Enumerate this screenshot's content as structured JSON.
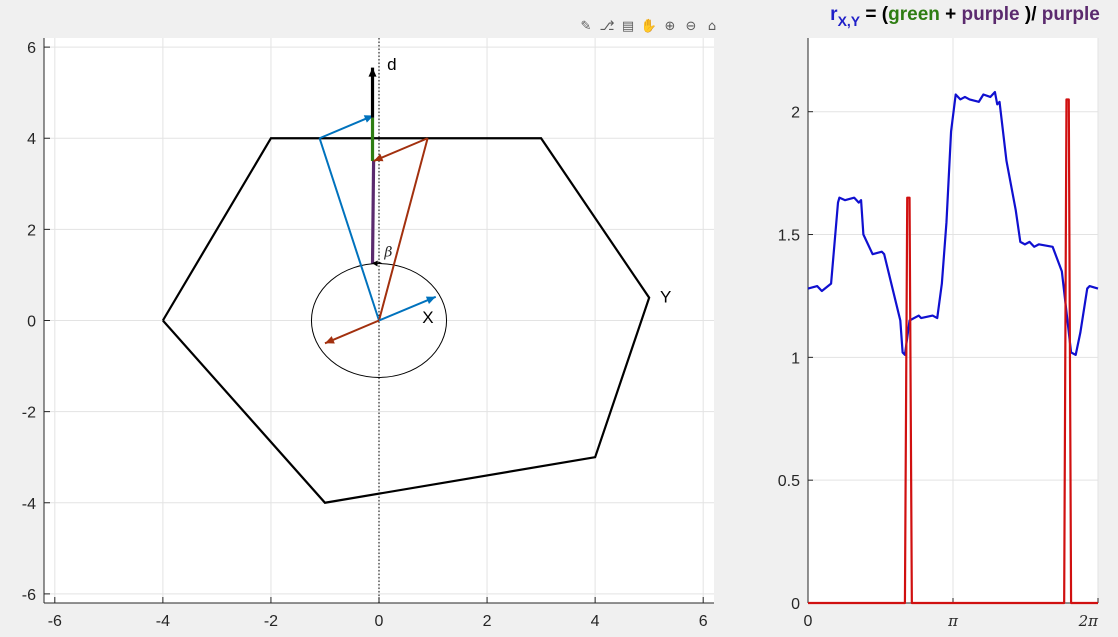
{
  "toolbar": [
    {
      "name": "brush-icon",
      "glyph": "✎"
    },
    {
      "name": "data-tips-icon",
      "glyph": "⎇"
    },
    {
      "name": "legend-icon",
      "glyph": "▤"
    },
    {
      "name": "pan-icon",
      "glyph": "✋"
    },
    {
      "name": "zoom-in-icon",
      "glyph": "⊕"
    },
    {
      "name": "zoom-out-icon",
      "glyph": "⊖"
    },
    {
      "name": "home-icon",
      "glyph": "⌂"
    }
  ],
  "colors": {
    "polygon": "#000000",
    "circle": "#000000",
    "d_vector": "#000000",
    "blue_arrow": "#0072BD",
    "red_arrow": "#A2300E",
    "green": "#2E7D12",
    "purple": "#5B2A6E",
    "title_blue": "#1f1fc8",
    "curve_blue": "#1010d0",
    "curve_red": "#d01010",
    "grid": "#e3e3e3"
  },
  "chart_data": [
    {
      "type": "line",
      "annotations": {
        "d": "d",
        "X": "X",
        "Y": "Y",
        "beta": "β"
      },
      "xlim": [
        -6.2,
        6.2
      ],
      "ylim": [
        -6.2,
        6.2
      ],
      "xticks": [
        -6,
        -4,
        -2,
        0,
        2,
        4,
        6
      ],
      "yticks": [
        -6,
        -4,
        -2,
        0,
        2,
        4,
        6
      ],
      "xtick_labels": [
        "-6",
        "-4",
        "-2",
        "0",
        "2",
        "4",
        "6"
      ],
      "ytick_labels": [
        "-6",
        "-4",
        "-2",
        "0",
        "2",
        "4",
        "6"
      ],
      "grid": true,
      "polygon_Y": {
        "x": [
          -4,
          -2,
          3,
          5,
          4,
          -1,
          -4
        ],
        "y": [
          0,
          4,
          4,
          0.5,
          -3,
          -4,
          0
        ]
      },
      "circle_X": {
        "cx": 0,
        "cy": 0,
        "rx": 1.25,
        "ry": 1.25
      },
      "vertical_dotted_line_x": 0,
      "d_vector": {
        "from": [
          -0.12,
          4.45
        ],
        "to": [
          -0.12,
          5.55
        ]
      },
      "blue_vectors": [
        {
          "from": [
            0,
            0
          ],
          "to": [
            1.05,
            0.52
          ]
        },
        {
          "from": [
            -1.1,
            4.0
          ],
          "to": [
            -0.1,
            4.5
          ]
        }
      ],
      "red_vectors": [
        {
          "from": [
            0,
            0
          ],
          "to": [
            -1.0,
            -0.5
          ]
        },
        {
          "from": [
            0.9,
            4.0
          ],
          "to": [
            -0.1,
            3.5
          ]
        }
      ],
      "blue_lines": [
        {
          "x": [
            0,
            -1.1
          ],
          "y": [
            0,
            4.0
          ]
        }
      ],
      "red_lines": [
        {
          "x": [
            0,
            0.9
          ],
          "y": [
            0,
            4.0
          ]
        }
      ],
      "green_segment": {
        "x": [
          -0.12,
          -0.12
        ],
        "y": [
          3.5,
          4.45
        ]
      },
      "purple_segment": {
        "x": [
          -0.12,
          -0.1
        ],
        "y": [
          1.25,
          3.5
        ]
      },
      "beta_arc": {
        "from": [
          -0.12,
          1.25
        ],
        "to": [
          0.05,
          1.25
        ]
      }
    },
    {
      "type": "line",
      "title_parts": [
        {
          "text": "r",
          "color": "#1f1fc8",
          "kind": "main"
        },
        {
          "text": "X,Y",
          "color": "#1f1fc8",
          "kind": "sub"
        },
        {
          "text": " = (",
          "color": "#000000",
          "kind": "main"
        },
        {
          "text": "green",
          "color": "#2E7D12",
          "kind": "main"
        },
        {
          "text": " + ",
          "color": "#000000",
          "kind": "main"
        },
        {
          "text": "purple",
          "color": "#5B2A6E",
          "kind": "main"
        },
        {
          "text": " )/ ",
          "color": "#000000",
          "kind": "main"
        },
        {
          "text": "purple",
          "color": "#5B2A6E",
          "kind": "main"
        }
      ],
      "xlim": [
        0,
        6.2832
      ],
      "ylim": [
        0,
        2.3
      ],
      "xticks": [
        0,
        3.1416,
        6.2832
      ],
      "xtick_labels": [
        "0",
        "π",
        "2π"
      ],
      "yticks": [
        0,
        0.5,
        1,
        1.5,
        2
      ],
      "ytick_labels": [
        "0",
        "0.5",
        "1",
        "1.5",
        "2"
      ],
      "grid": true,
      "series": [
        {
          "color": "#1010d0",
          "x": [
            0,
            0.2,
            0.3,
            0.5,
            0.65,
            0.68,
            0.8,
            1.0,
            1.1,
            1.15,
            1.2,
            1.4,
            1.6,
            1.65,
            2.0,
            2.05,
            2.1,
            2.2,
            2.4,
            2.45,
            2.7,
            2.8,
            2.9,
            3.0,
            3.1,
            3.2,
            3.3,
            3.4,
            3.5,
            3.7,
            3.8,
            3.95,
            4.05,
            4.1,
            4.15,
            4.3,
            4.5,
            4.6,
            4.7,
            4.8,
            4.9,
            5.0,
            5.3,
            5.5,
            5.7,
            5.8,
            5.9,
            6.0,
            6.05,
            6.1,
            6.2832
          ],
          "y": [
            1.28,
            1.29,
            1.27,
            1.3,
            1.63,
            1.65,
            1.64,
            1.65,
            1.63,
            1.64,
            1.5,
            1.42,
            1.43,
            1.42,
            1.15,
            1.02,
            1.01,
            1.15,
            1.17,
            1.16,
            1.17,
            1.16,
            1.3,
            1.55,
            1.92,
            2.07,
            2.05,
            2.06,
            2.05,
            2.04,
            2.07,
            2.06,
            2.08,
            2.03,
            2.04,
            1.8,
            1.6,
            1.47,
            1.46,
            1.47,
            1.45,
            1.46,
            1.45,
            1.35,
            1.02,
            1.01,
            1.1,
            1.22,
            1.28,
            1.29,
            1.28
          ]
        },
        {
          "color": "#d01010",
          "x": [
            0,
            2.1,
            2.15,
            2.2,
            2.25,
            5.55,
            5.6,
            5.65,
            5.7,
            6.2832
          ],
          "y": [
            0,
            0,
            1.65,
            1.65,
            0,
            0,
            2.05,
            2.05,
            0,
            0
          ]
        }
      ]
    }
  ]
}
